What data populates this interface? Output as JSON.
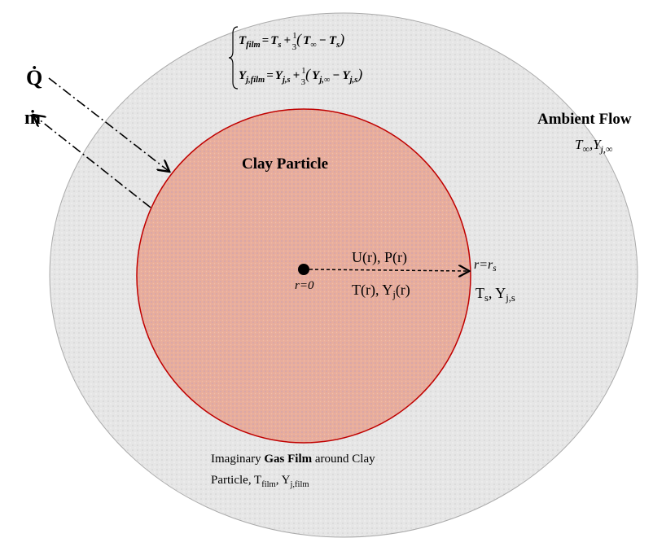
{
  "labels": {
    "q_dot": "Q̇",
    "m_dot": "ṁ",
    "clay_particle": "Clay Particle",
    "ambient_flow": "Ambient Flow",
    "ambient_state": [
      "T",
      "∞",
      ",",
      "Y",
      "j,∞"
    ],
    "film_equations": [
      [
        "T",
        "film",
        "=",
        "T",
        "s",
        "+",
        "1",
        "3",
        "(",
        "T",
        "∞",
        "−",
        "T",
        "s",
        ")"
      ],
      [
        "Y",
        "j,film",
        "=",
        "Y",
        "j,s",
        "+",
        "1",
        "3",
        "(",
        "Y",
        "j,∞",
        "−",
        "Y",
        "j,s",
        ")"
      ]
    ],
    "center": "r=0",
    "surface_radius": [
      "r=r",
      "s"
    ],
    "velocity_pressure": "U(r), P(r)",
    "temperature_species": [
      "T(r), Y",
      "j",
      "(r)"
    ],
    "surface_state": [
      "T",
      "s",
      ", Y",
      "j,s"
    ],
    "gas_film": {
      "line1": [
        "Imaginary ",
        "Gas Film",
        " around Clay"
      ],
      "line2": [
        "Particle, T",
        "film",
        ", Y",
        "j,film"
      ]
    }
  }
}
